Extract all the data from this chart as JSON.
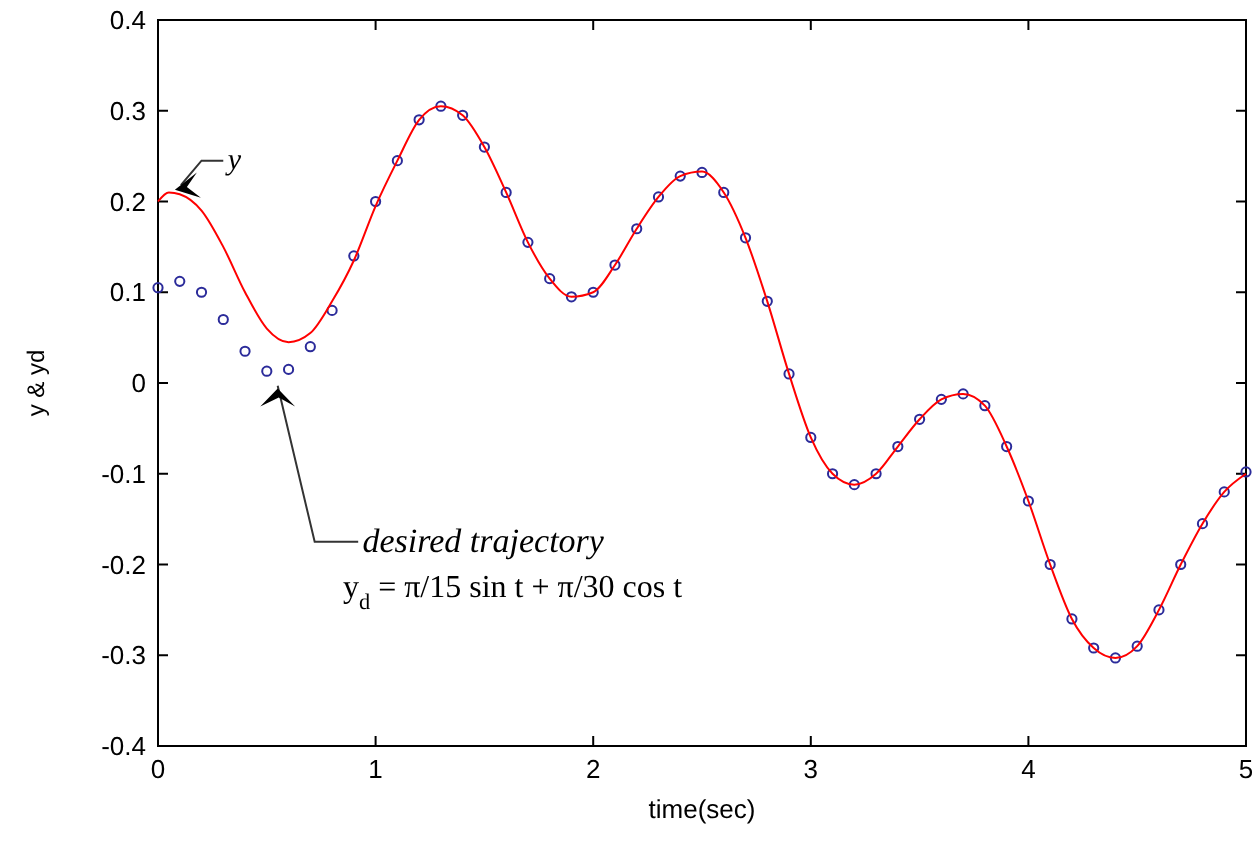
{
  "chart_data": {
    "type": "line",
    "xlabel": "time(sec)",
    "ylabel": "y & yd",
    "xlim": [
      0,
      5
    ],
    "ylim": [
      -0.4,
      0.4
    ],
    "xticks": [
      0,
      1,
      2,
      3,
      4,
      5
    ],
    "yticks": [
      -0.4,
      -0.3,
      -0.2,
      -0.1,
      0,
      0.1,
      0.2,
      0.3,
      0.4
    ],
    "grid": false,
    "series": [
      {
        "name": "y",
        "color": "#ff0000",
        "marker": "none",
        "x": [
          0,
          0.05,
          0.1,
          0.2,
          0.3,
          0.4,
          0.5,
          0.6,
          0.7,
          0.8,
          0.9,
          1.0,
          1.1,
          1.2,
          1.3,
          1.4,
          1.5,
          1.6,
          1.7,
          1.8,
          1.9,
          2.0,
          2.1,
          2.2,
          2.3,
          2.4,
          2.5,
          2.6,
          2.7,
          2.8,
          2.9,
          3.0,
          3.1,
          3.2,
          3.3,
          3.4,
          3.5,
          3.6,
          3.7,
          3.8,
          3.9,
          4.0,
          4.1,
          4.2,
          4.3,
          4.4,
          4.5,
          4.6,
          4.7,
          4.8,
          4.9,
          5.0
        ],
        "values": [
          0.2,
          0.21,
          0.208,
          0.19,
          0.15,
          0.1,
          0.06,
          0.045,
          0.055,
          0.09,
          0.135,
          0.195,
          0.245,
          0.29,
          0.305,
          0.295,
          0.26,
          0.21,
          0.155,
          0.115,
          0.095,
          0.1,
          0.13,
          0.17,
          0.205,
          0.228,
          0.233,
          0.21,
          0.16,
          0.09,
          0.01,
          -0.06,
          -0.1,
          -0.112,
          -0.1,
          -0.07,
          -0.04,
          -0.018,
          -0.012,
          -0.025,
          -0.07,
          -0.13,
          -0.2,
          -0.26,
          -0.292,
          -0.303,
          -0.29,
          -0.25,
          -0.2,
          -0.155,
          -0.12,
          -0.1
        ]
      },
      {
        "name": "desired trajectory",
        "type": "scatter",
        "color": "#2b2b9a",
        "marker": "circle",
        "x": [
          0,
          0.1,
          0.2,
          0.3,
          0.4,
          0.5,
          0.6,
          0.7,
          0.8,
          0.9,
          1.0,
          1.1,
          1.2,
          1.3,
          1.4,
          1.5,
          1.6,
          1.7,
          1.8,
          1.9,
          2.0,
          2.1,
          2.2,
          2.3,
          2.4,
          2.5,
          2.6,
          2.7,
          2.8,
          2.9,
          3.0,
          3.1,
          3.2,
          3.3,
          3.4,
          3.5,
          3.6,
          3.7,
          3.8,
          3.9,
          4.0,
          4.1,
          4.2,
          4.3,
          4.4,
          4.5,
          4.6,
          4.7,
          4.8,
          4.9,
          5.0
        ],
        "values": [
          0.105,
          0.112,
          0.1,
          0.07,
          0.035,
          0.013,
          0.015,
          0.04,
          0.08,
          0.14,
          0.2,
          0.245,
          0.29,
          0.305,
          0.295,
          0.26,
          0.21,
          0.155,
          0.115,
          0.095,
          0.1,
          0.13,
          0.17,
          0.205,
          0.228,
          0.232,
          0.21,
          0.16,
          0.09,
          0.01,
          -0.06,
          -0.1,
          -0.112,
          -0.1,
          -0.07,
          -0.04,
          -0.018,
          -0.012,
          -0.025,
          -0.07,
          -0.13,
          -0.2,
          -0.26,
          -0.292,
          -0.303,
          -0.29,
          -0.25,
          -0.2,
          -0.155,
          -0.12,
          -0.098
        ]
      }
    ],
    "annotations": [
      "y$_{d}$ = π/15 sin t + π/30 cos t"
    ]
  }
}
